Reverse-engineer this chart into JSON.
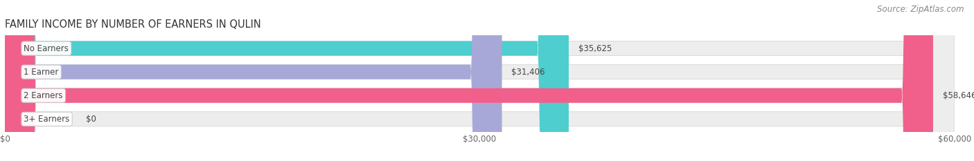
{
  "title": "FAMILY INCOME BY NUMBER OF EARNERS IN QULIN",
  "source": "Source: ZipAtlas.com",
  "categories": [
    "No Earners",
    "1 Earner",
    "2 Earners",
    "3+ Earners"
  ],
  "values": [
    35625,
    31406,
    58646,
    0
  ],
  "bar_colors": [
    "#4ECECE",
    "#A8A8D8",
    "#F0608A",
    "#F5C99A"
  ],
  "bar_bg_color": "#EDEDEE",
  "value_labels": [
    "$35,625",
    "$31,406",
    "$58,646",
    "$0"
  ],
  "x_max": 60000,
  "x_ticks": [
    0,
    30000,
    60000
  ],
  "x_tick_labels": [
    "$0",
    "$30,000",
    "$60,000"
  ],
  "background_color": "#FFFFFF",
  "title_fontsize": 10.5,
  "source_fontsize": 8.5,
  "label_fontsize": 8.5,
  "bar_height": 0.62
}
